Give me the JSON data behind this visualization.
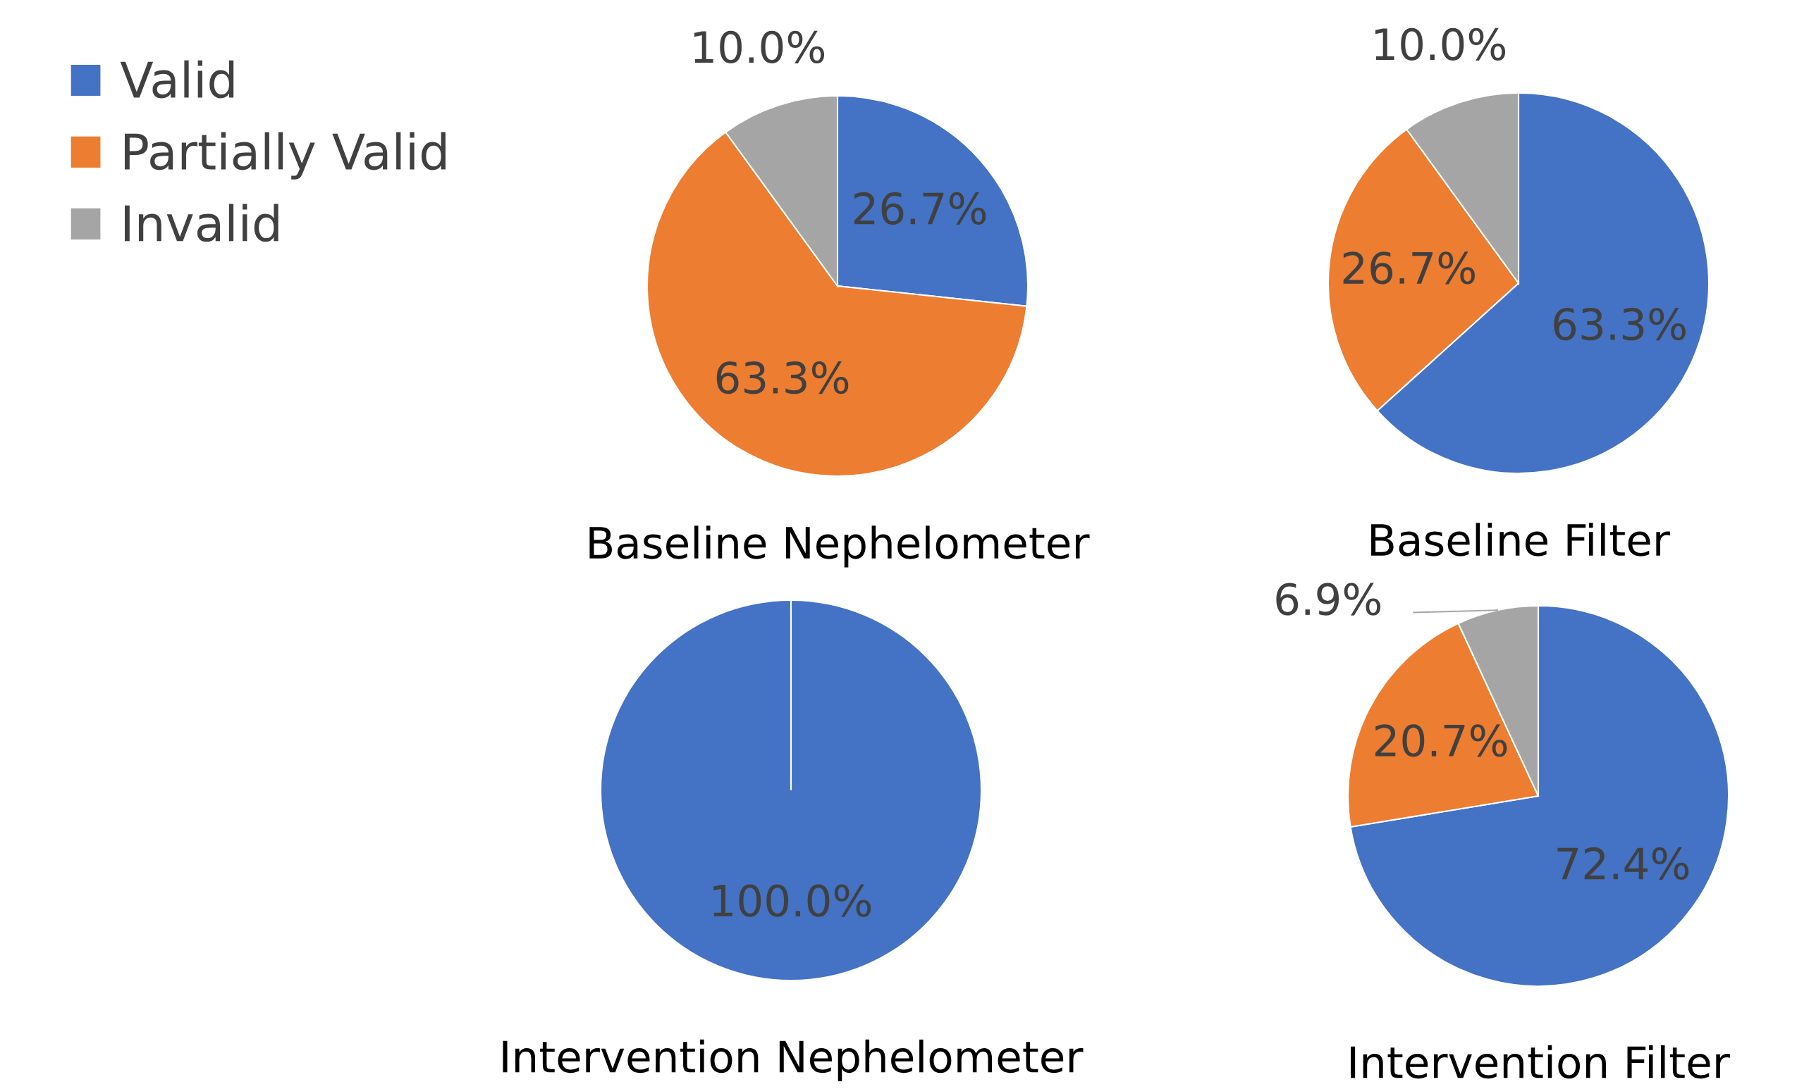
{
  "chart_data": [
    {
      "type": "pie",
      "title": "Baseline Nephelometer",
      "categories": [
        "Valid",
        "Partially Valid",
        "Invalid"
      ],
      "values": [
        26.7,
        63.3,
        10.0
      ],
      "colors": [
        "#4472c4",
        "#ed7d31",
        "#a5a5a5"
      ],
      "value_labels": [
        "26.7%",
        "63.3%",
        "10.0%"
      ],
      "legend": "left"
    },
    {
      "type": "pie",
      "title": "Baseline Filter",
      "values": [
        63.3,
        26.7,
        10.0
      ],
      "colors": [
        "#4472c4",
        "#ed7d31",
        "#a5a5a5"
      ],
      "value_labels": [
        "63.3%",
        "26.7%",
        "10.0%"
      ]
    },
    {
      "type": "pie",
      "title": "Intervention Nephelometer",
      "values": [
        100.0,
        0,
        0
      ],
      "colors": [
        "#4472c4",
        "#ed7d31",
        "#a5a5a5"
      ],
      "value_labels": [
        "100.0%",
        null,
        null
      ]
    },
    {
      "type": "pie",
      "title": "Intervention Filter",
      "values": [
        72.4,
        20.7,
        6.9
      ],
      "colors": [
        "#4472c4",
        "#ed7d31",
        "#a5a5a5"
      ],
      "value_labels": [
        "72.4%",
        "20.7%",
        "6.9%"
      ]
    }
  ]
}
